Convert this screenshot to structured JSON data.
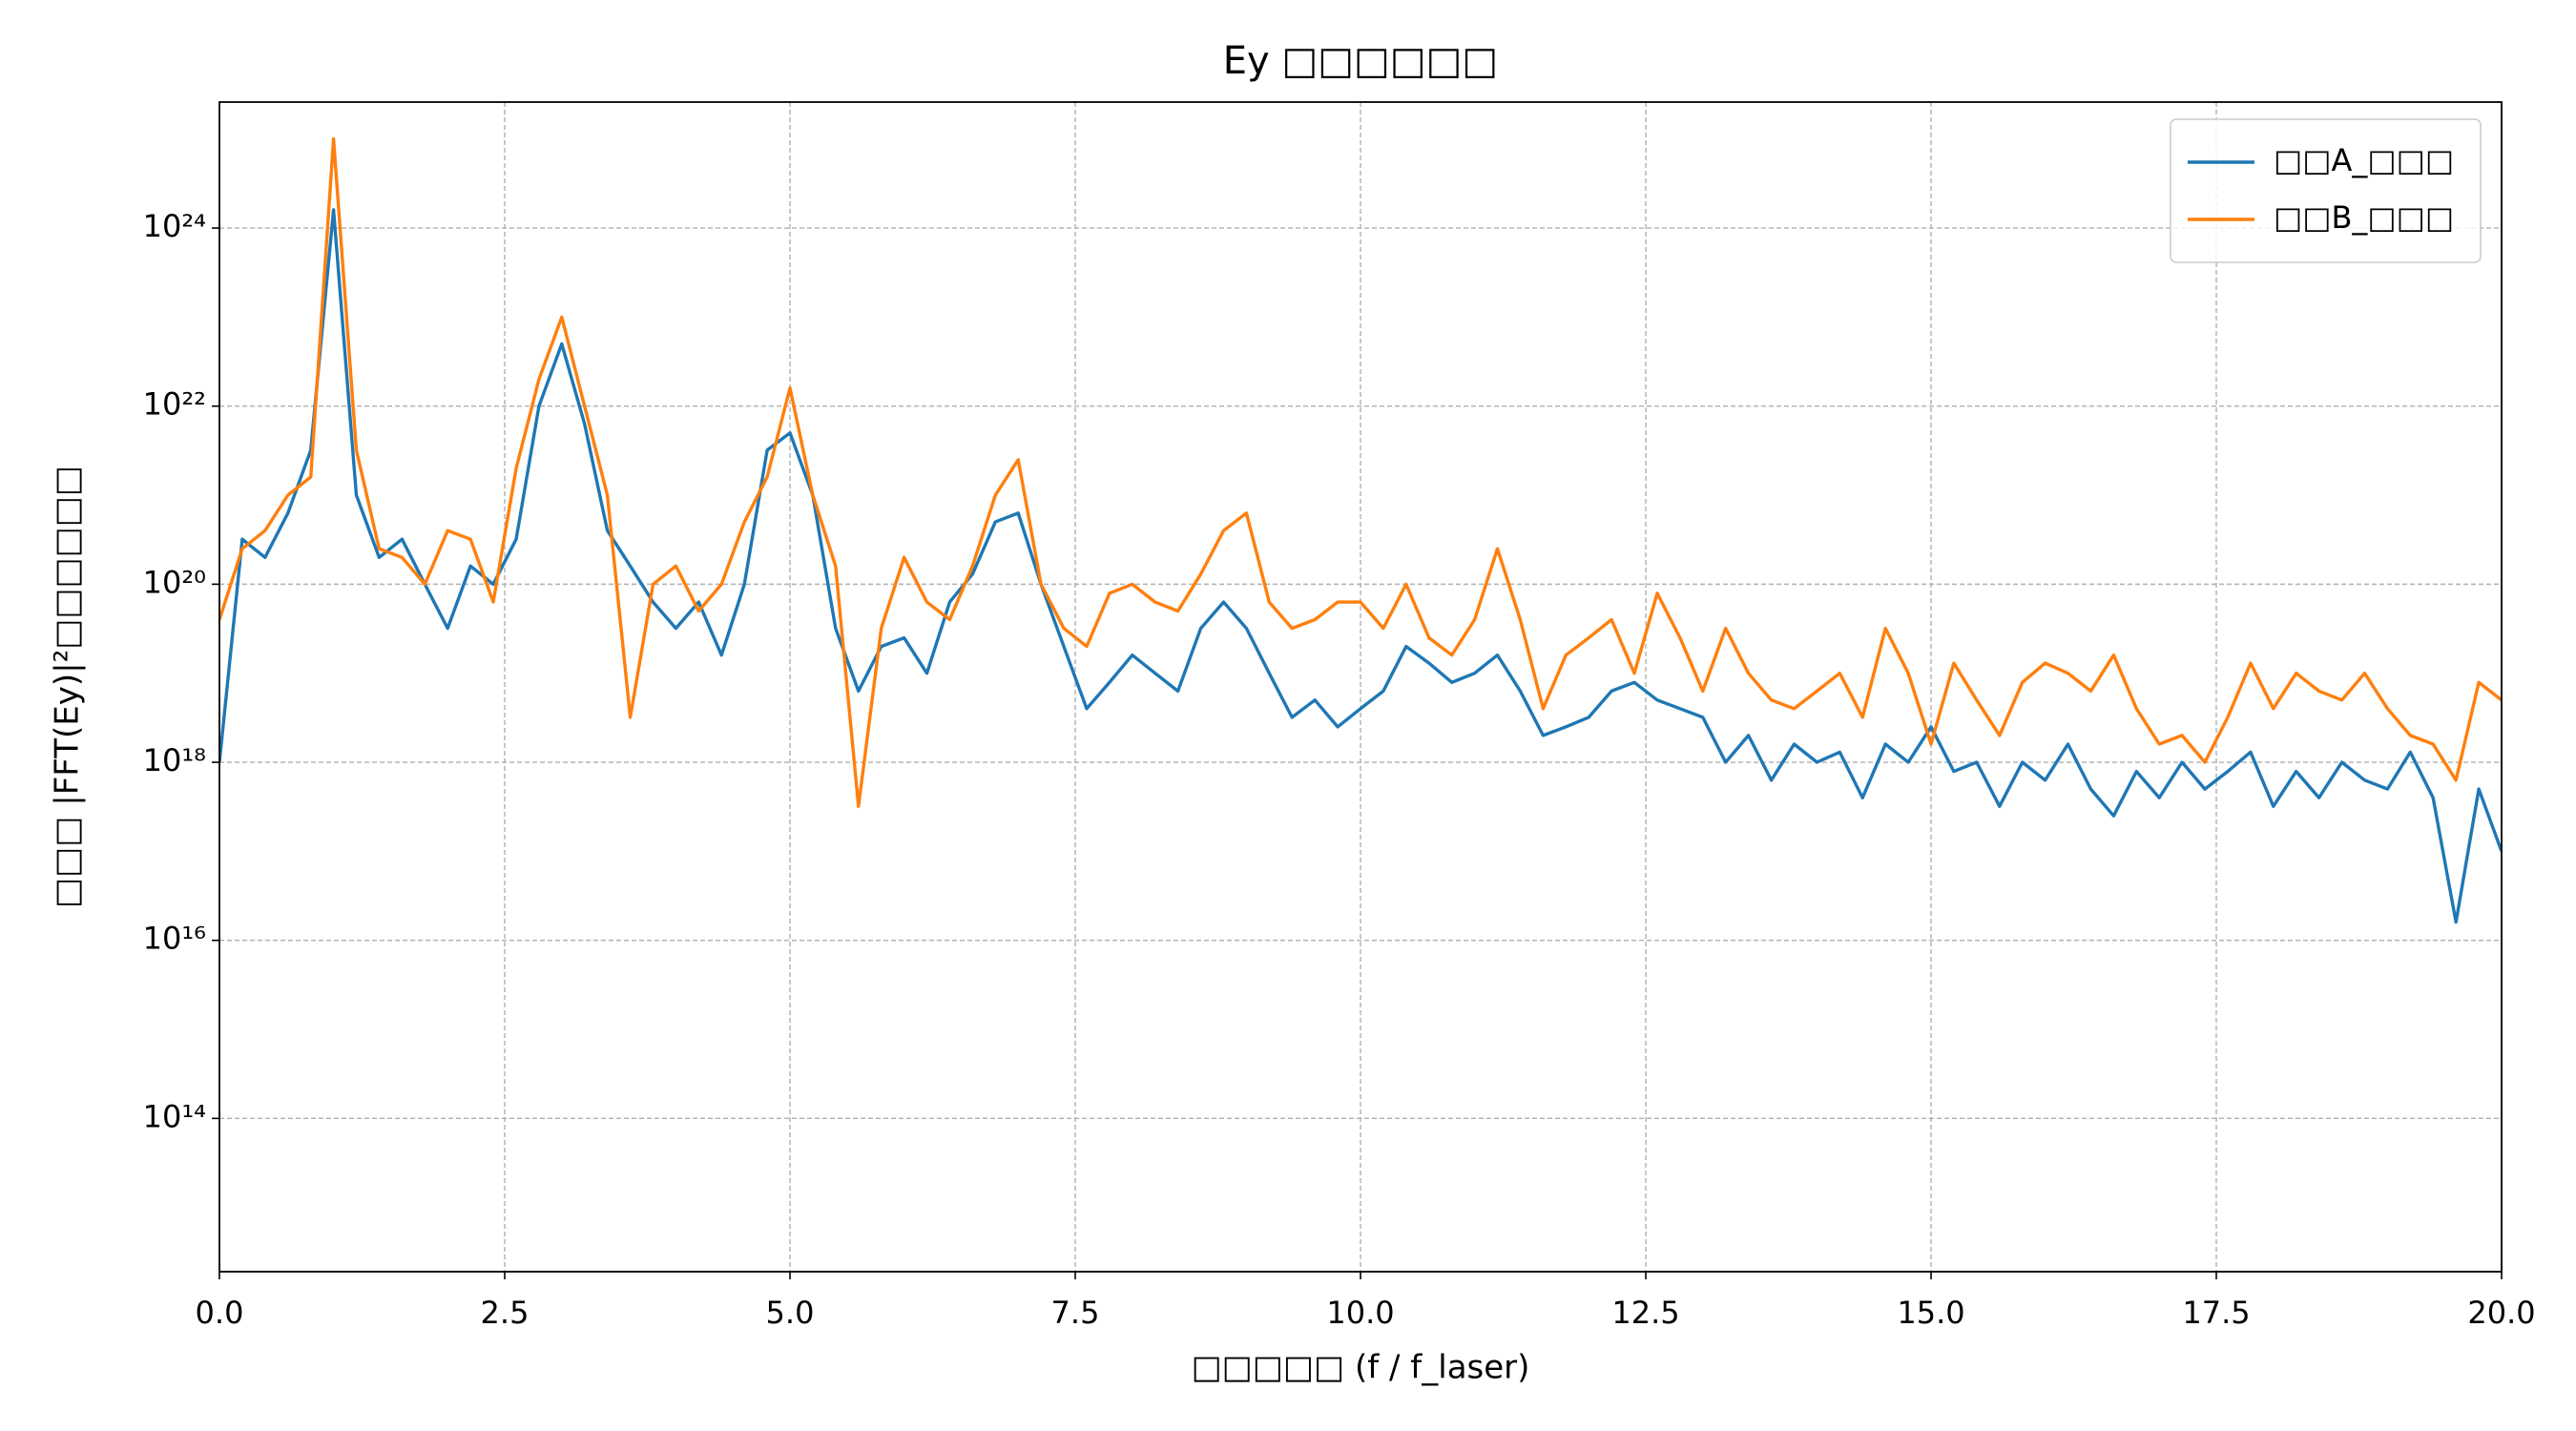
{
  "chart_data": {
    "type": "line",
    "title": "Ey □□□□□□",
    "x_label": "□□□□□ (f / f_laser)",
    "y_label": "□□□ |FFT(Ey)|²□□□□□□",
    "log_y": true,
    "grid": true,
    "legend": "upper right",
    "xlim": [
      0,
      20
    ],
    "xticks": [
      {
        "value": 0,
        "label": "0.0"
      },
      2.5,
      {
        "value": 5,
        "label": "5.0"
      },
      7.5,
      {
        "value": 10,
        "label": "10.0"
      },
      12.5,
      {
        "value": 15,
        "label": "15.0"
      },
      17.5,
      {
        "value": 20,
        "label": "20.0"
      }
    ],
    "ylim": [
      1900000000000.0,
      2.6e+25
    ],
    "yticks": [
      {
        "value": 100000000000000.0,
        "label": "10¹⁴"
      },
      {
        "value": 1e+16,
        "label": "10¹⁶"
      },
      {
        "value": 1e+18,
        "label": "10¹⁸"
      },
      {
        "value": 1e+20,
        "label": "10²⁰"
      },
      {
        "value": 1e+22,
        "label": "10²²"
      },
      {
        "value": 1e+24,
        "label": "10²⁴"
      }
    ],
    "x": [
      0,
      0.2,
      0.4,
      0.6,
      0.8,
      1,
      1.2,
      1.4,
      1.6,
      1.8,
      2,
      2.2,
      2.4,
      2.6,
      2.8,
      3,
      3.2,
      3.4,
      3.6,
      3.8,
      4,
      4.2,
      4.4,
      4.6,
      4.8,
      5,
      5.2,
      5.4,
      5.6,
      5.8,
      6,
      6.2,
      6.4,
      6.6,
      6.8,
      7,
      7.2,
      7.4,
      7.6,
      7.8,
      8,
      8.2,
      8.4,
      8.6,
      8.8,
      9,
      9.2,
      9.4,
      9.6,
      9.8,
      10,
      10.2,
      10.4,
      10.6,
      10.8,
      11,
      11.2,
      11.4,
      11.6,
      11.8,
      12,
      12.2,
      12.4,
      12.6,
      12.8,
      13,
      13.2,
      13.4,
      13.6,
      13.8,
      14,
      14.2,
      14.4,
      14.6,
      14.8,
      15,
      15.2,
      15.4,
      15.6,
      15.8,
      16,
      16.2,
      16.4,
      16.6,
      16.8,
      17,
      17.2,
      17.4,
      17.6,
      17.8,
      18,
      18.2,
      18.4,
      18.6,
      18.8,
      19,
      19.2,
      19.4,
      19.6,
      19.8,
      20
    ],
    "series": [
      {
        "name": "□□A_□□□",
        "color": "#1f77b4",
        "values": [
          1e+18,
          3.2e+20,
          2e+20,
          6.3e+20,
          3.2e+21,
          1.6e+24,
          1e+21,
          2e+20,
          3.2e+20,
          1e+20,
          3.2e+19,
          1.6e+20,
          1e+20,
          3.2e+20,
          1e+22,
          5e+22,
          6.3e+21,
          4e+20,
          1.6e+20,
          6.3e+19,
          3.2e+19,
          6.3e+19,
          1.6e+19,
          1e+20,
          3.2e+21,
          5e+21,
          1e+21,
          3.2e+19,
          6.3e+18,
          2e+19,
          2.5e+19,
          1e+19,
          6.3e+19,
          1.3e+20,
          5e+20,
          6.3e+20,
          1e+20,
          2e+19,
          4e+18,
          7.9e+18,
          1.6e+19,
          1e+19,
          6.3e+18,
          3.2e+19,
          6.3e+19,
          3.2e+19,
          1e+19,
          3.2e+18,
          5e+18,
          2.5e+18,
          4e+18,
          6.3e+18,
          2e+19,
          1.3e+19,
          7.9e+18,
          1e+19,
          1.6e+19,
          6.3e+18,
          2e+18,
          2.5e+18,
          3.2e+18,
          6.3e+18,
          7.9e+18,
          5e+18,
          4e+18,
          3.2e+18,
          1e+18,
          2e+18,
          6.3e+17,
          1.6e+18,
          1e+18,
          1.3e+18,
          4e+17,
          1.6e+18,
          1e+18,
          2.5e+18,
          7.9e+17,
          1e+18,
          3.2e+17,
          1e+18,
          6.3e+17,
          1.6e+18,
          5e+17,
          2.5e+17,
          7.9e+17,
          4e+17,
          1e+18,
          5e+17,
          7.9e+17,
          1.3e+18,
          3.2e+17,
          7.9e+17,
          4e+17,
          1e+18,
          6.3e+17,
          5e+17,
          1.3e+18,
          4e+17,
          1.6e+16,
          5e+17,
          1e+17
        ]
      },
      {
        "name": "□□B_□□□",
        "color": "#ff7f0e",
        "values": [
          4e+19,
          2.5e+20,
          4e+20,
          1e+21,
          1.6e+21,
          1e+25,
          3.2e+21,
          2.5e+20,
          2e+20,
          1e+20,
          4e+20,
          3.2e+20,
          6.3e+19,
          2e+21,
          2e+22,
          1e+23,
          1e+22,
          1e+21,
          3.2e+18,
          1e+20,
          1.6e+20,
          5e+19,
          1e+20,
          5e+20,
          1.6e+21,
          1.6e+22,
          1e+21,
          1.6e+20,
          3.2e+17,
          3.2e+19,
          2e+20,
          6.3e+19,
          4e+19,
          1.6e+20,
          1e+21,
          2.5e+21,
          1e+20,
          3.2e+19,
          2e+19,
          7.9e+19,
          1e+20,
          6.3e+19,
          5e+19,
          1.3e+20,
          4e+20,
          6.3e+20,
          6.3e+19,
          3.2e+19,
          4e+19,
          6.3e+19,
          6.3e+19,
          3.2e+19,
          1e+20,
          2.5e+19,
          1.6e+19,
          4e+19,
          2.5e+20,
          4e+19,
          4e+18,
          1.6e+19,
          2.5e+19,
          4e+19,
          1e+19,
          7.9e+19,
          2.5e+19,
          6.3e+18,
          3.2e+19,
          1e+19,
          5e+18,
          4e+18,
          6.3e+18,
          1e+19,
          3.2e+18,
          3.2e+19,
          1e+19,
          1.6e+18,
          1.3e+19,
          5e+18,
          2e+18,
          7.9e+18,
          1.3e+19,
          1e+19,
          6.3e+18,
          1.6e+19,
          4e+18,
          1.6e+18,
          2e+18,
          1e+18,
          3.2e+18,
          1.3e+19,
          4e+18,
          1e+19,
          6.3e+18,
          5e+18,
          1e+19,
          4e+18,
          2e+18,
          1.6e+18,
          6.3e+17,
          7.9e+18,
          5e+18
        ]
      }
    ]
  }
}
